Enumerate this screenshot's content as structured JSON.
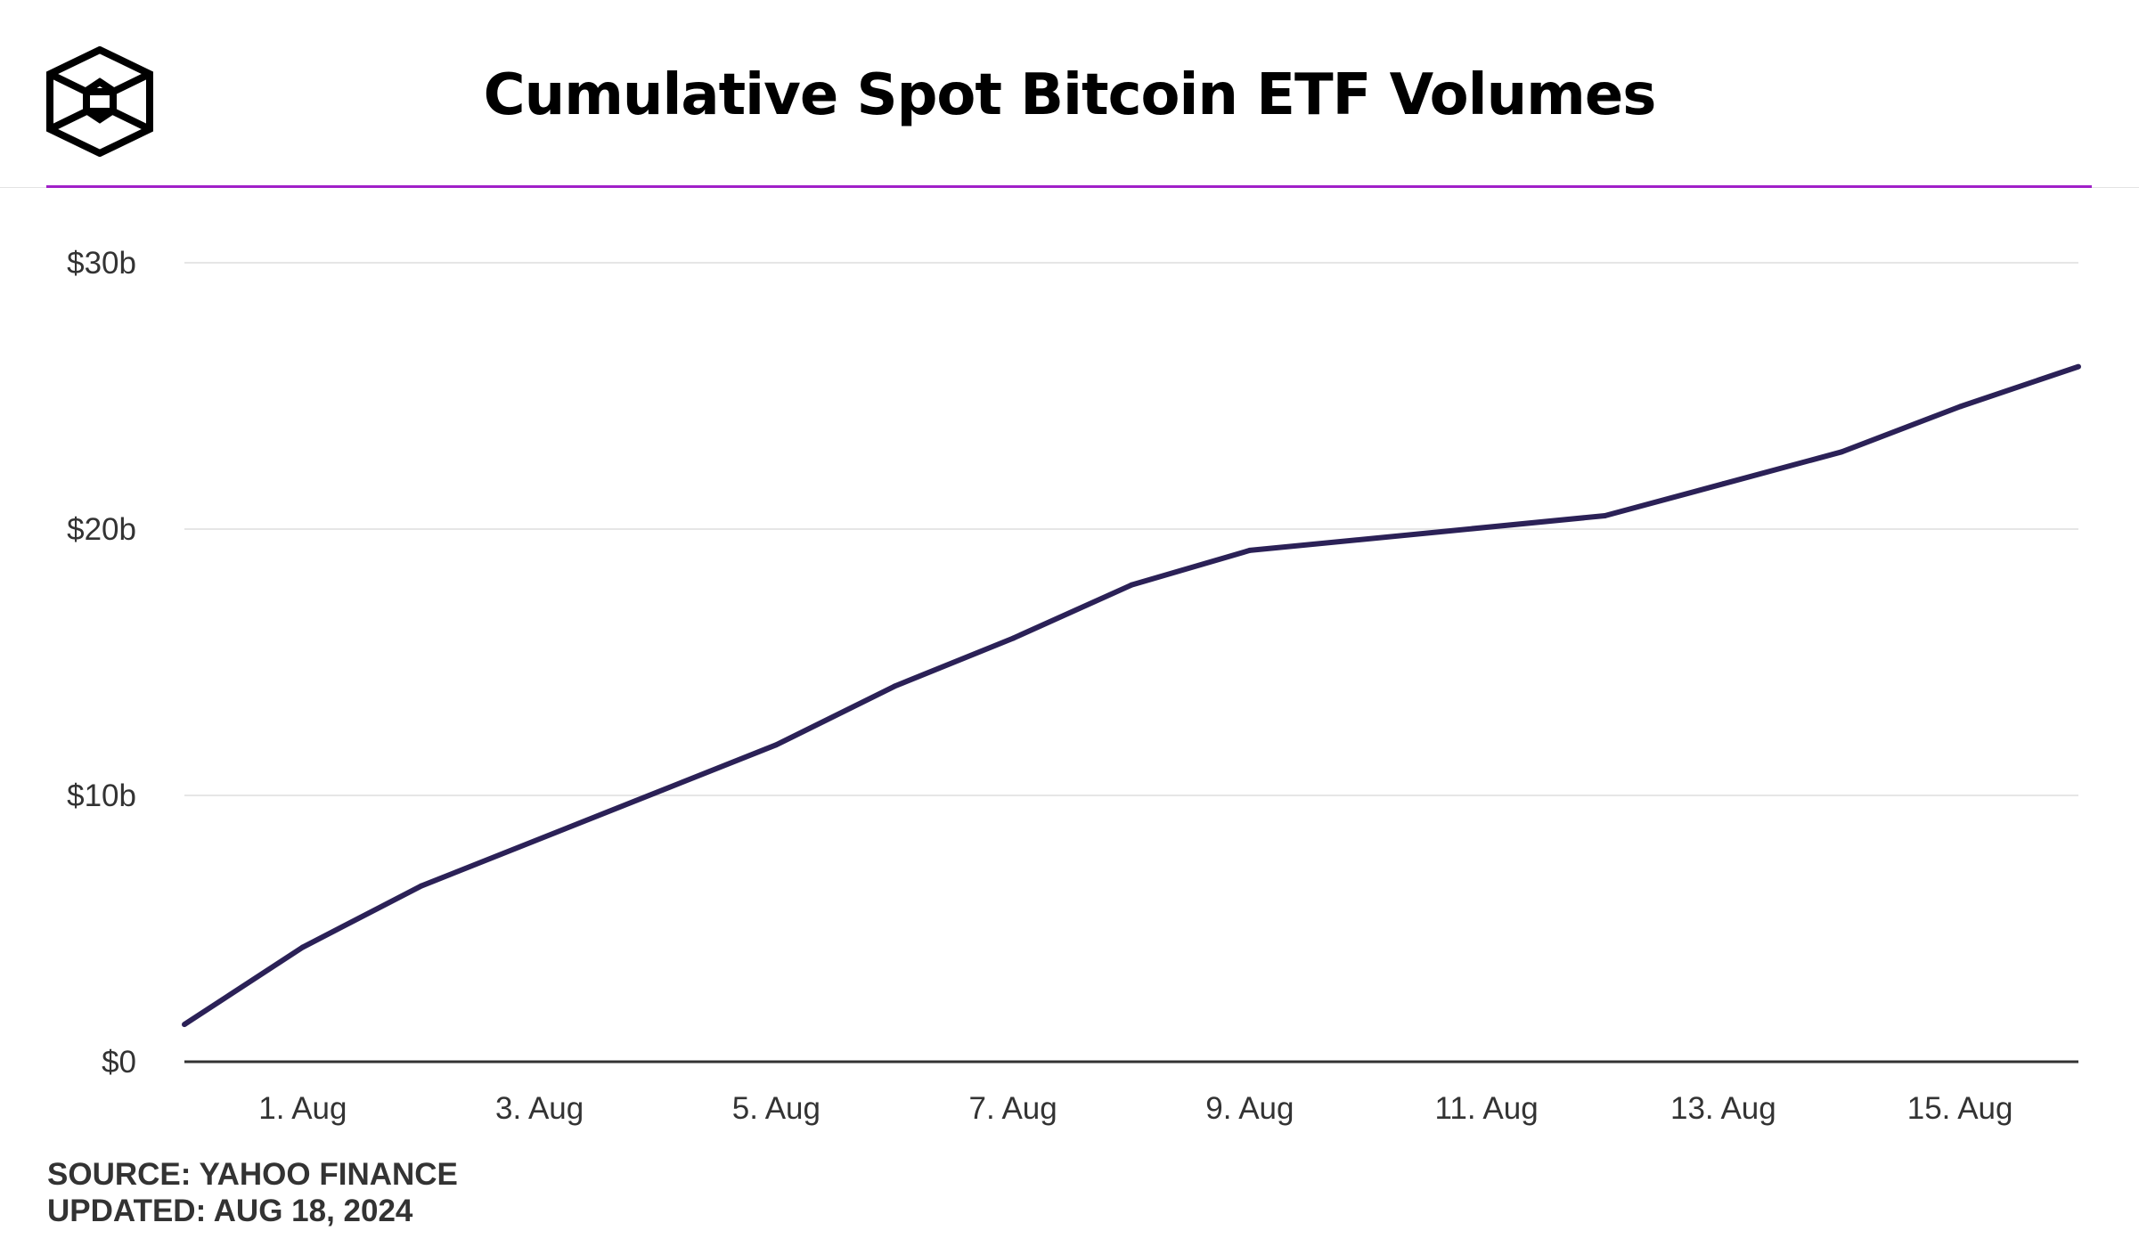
{
  "header": {
    "title": "Cumulative Spot Bitcoin ETF Volumes",
    "logo_icon": "cube-logo-icon"
  },
  "footer": {
    "source": "SOURCE: YAHOO FINANCE",
    "updated": "UPDATED: AUG 18, 2024"
  },
  "colors": {
    "line": "#2b2157",
    "accent": "#a020c8",
    "grid": "#e6e6e6",
    "axis": "#333333",
    "tick_text": "#333333"
  },
  "chart_data": {
    "type": "line",
    "title": "Cumulative Spot Bitcoin ETF Volumes",
    "xlabel": "",
    "ylabel": "",
    "x_unit": "days",
    "x": [
      "2024-07-31",
      "2024-08-01",
      "2024-08-02",
      "2024-08-05",
      "2024-08-06",
      "2024-08-07",
      "2024-08-08",
      "2024-08-09",
      "2024-08-12",
      "2024-08-13",
      "2024-08-14",
      "2024-08-15",
      "2024-08-16"
    ],
    "series": [
      {
        "values": [
          1.4,
          4.3,
          6.6,
          11.9,
          14.1,
          15.9,
          17.9,
          19.2,
          20.5,
          21.7,
          22.9,
          24.6,
          26.1
        ]
      }
    ],
    "x_ticks": [
      {
        "date": "2024-08-01",
        "label": "1. Aug"
      },
      {
        "date": "2024-08-03",
        "label": "3. Aug"
      },
      {
        "date": "2024-08-05",
        "label": "5. Aug"
      },
      {
        "date": "2024-08-07",
        "label": "7. Aug"
      },
      {
        "date": "2024-08-09",
        "label": "9. Aug"
      },
      {
        "date": "2024-08-11",
        "label": "11. Aug"
      },
      {
        "date": "2024-08-13",
        "label": "13. Aug"
      },
      {
        "date": "2024-08-15",
        "label": "15. Aug"
      }
    ],
    "y_ticks": [
      {
        "value": 0,
        "label": "$0"
      },
      {
        "value": 10,
        "label": "$10b"
      },
      {
        "value": 20,
        "label": "$20b"
      },
      {
        "value": 30,
        "label": "$30b"
      }
    ],
    "xlim": [
      "2024-07-31",
      "2024-08-16"
    ],
    "ylim": [
      0,
      30
    ],
    "grid": true,
    "legend": "none"
  }
}
